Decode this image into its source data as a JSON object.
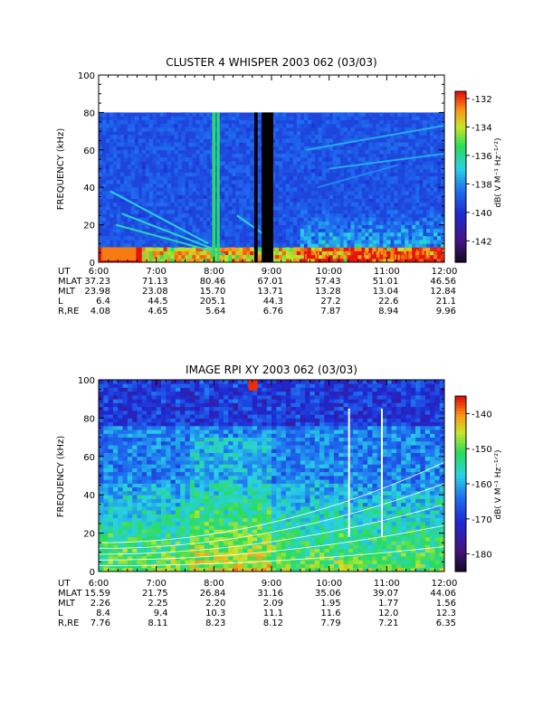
{
  "chart_data": [
    {
      "type": "heatmap",
      "title": "CLUSTER 4 WHISPER 2003 062 (03/03)",
      "ylabel": "FREQUENCY (kHz)",
      "ylim": [
        0,
        100
      ],
      "y_ticks": [
        0,
        20,
        40,
        60,
        80,
        100
      ],
      "x_ticks": [
        "6:00",
        "7:00",
        "8:00",
        "9:00",
        "10:00",
        "11:00",
        "12:00"
      ],
      "data_ylim": [
        0,
        80
      ],
      "colorbar": {
        "label": "dB( V M⁻¹ Hz⁻¹ᐟ²)",
        "range": [
          -143.5,
          -131.5
        ],
        "ticks": [
          -132,
          -134,
          -136,
          -138,
          -140,
          -142
        ]
      },
      "ephemeris": {
        "labels": [
          "UT",
          "MLAT",
          "MLT",
          "L",
          "R,RE"
        ],
        "rows": [
          [
            "37.23",
            "71.13",
            "80.46",
            "67.01",
            "57.43",
            "51.01",
            "46.56"
          ],
          [
            "23.98",
            "23.08",
            "15.70",
            "13.71",
            "13.28",
            "13.04",
            "12.84"
          ],
          [
            "6.4",
            "44.5",
            "205.1",
            "44.3",
            "27.2",
            "22.6",
            "21.1"
          ],
          [
            "4.08",
            "4.65",
            "5.64",
            "6.76",
            "7.87",
            "8.94",
            "9.96"
          ]
        ]
      },
      "colors": {
        "background": "#1e46dc",
        "low": "#1a1a9a",
        "mid": "#30d0e0",
        "high": "#e02010",
        "data_gap": "#000000"
      }
    },
    {
      "type": "heatmap",
      "title": "IMAGE RPI XY 2003 062 (03/03)",
      "ylabel": "FREQUENCY (kHz)",
      "ylim": [
        0,
        100
      ],
      "y_ticks": [
        0,
        20,
        40,
        60,
        80,
        100
      ],
      "x_ticks": [
        "6:00",
        "7:00",
        "8:00",
        "9:00",
        "10:00",
        "11:00",
        "12:00"
      ],
      "colorbar": {
        "label": "dB( V M⁻¹ Hz⁻¹ᐟ²)",
        "range": [
          -185,
          -135
        ],
        "ticks": [
          -140,
          -150,
          -160,
          -170,
          -180
        ]
      },
      "ephemeris": {
        "labels": [
          "UT",
          "MLAT",
          "MLT",
          "L",
          "R,RE"
        ],
        "rows": [
          [
            "15.59",
            "21.75",
            "26.84",
            "31.16",
            "35.06",
            "39.07",
            "44.06"
          ],
          [
            "2.26",
            "2.25",
            "2.20",
            "2.09",
            "1.95",
            "1.77",
            "1.56"
          ],
          [
            "8.4",
            "9.4",
            "10.3",
            "11.1",
            "11.6",
            "12.0",
            "12.3"
          ],
          [
            "7.76",
            "8.11",
            "8.23",
            "8.12",
            "7.79",
            "7.21",
            "6.35"
          ]
        ]
      },
      "colors": {
        "background": "#2040d0",
        "low": "#202080",
        "mid": "#30d0d0",
        "high": "#f0e040",
        "data_gap": "#ffffff"
      }
    }
  ]
}
